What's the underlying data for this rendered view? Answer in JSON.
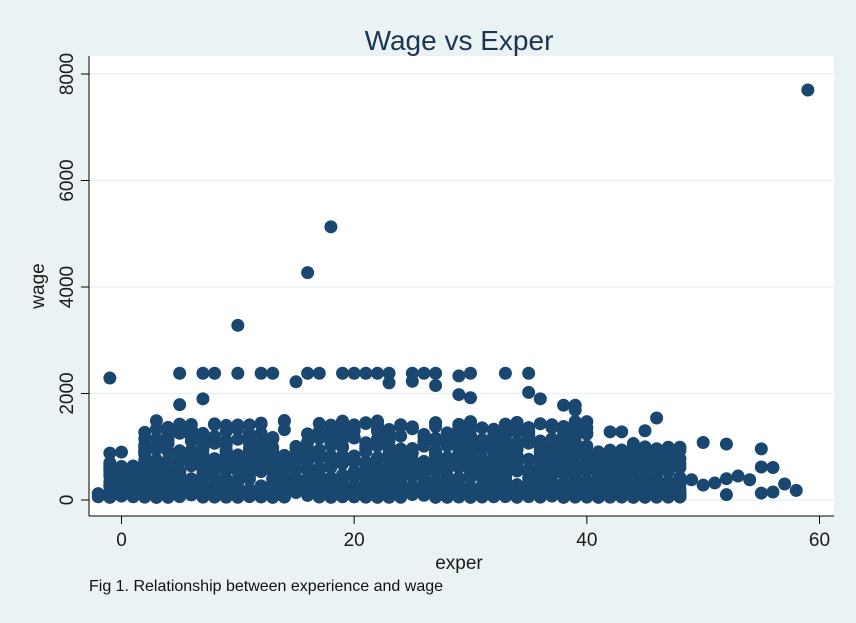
{
  "note": "Fig 1. Relationship between experience and wage",
  "colors": {
    "background": "#eaf2f3",
    "plot_bg": "#ffffff",
    "marker": "#1a476f",
    "grid": "#eaf2f3",
    "axis": "#000000"
  },
  "chart_data": {
    "type": "scatter",
    "title": "Wage vs Exper",
    "xlabel": "exper",
    "ylabel": "wage",
    "xlim": [
      -2,
      61
    ],
    "ylim": [
      -100,
      8300
    ],
    "xticks": [
      0,
      20,
      40,
      60
    ],
    "yticks": [
      0,
      2000,
      4000,
      6000,
      8000
    ],
    "grid": true,
    "legend": "none",
    "outliers": [
      {
        "x": 59,
        "y": 7700
      },
      {
        "x": 18,
        "y": 5130
      },
      {
        "x": 16,
        "y": 4270
      },
      {
        "x": 10,
        "y": 3280
      },
      {
        "x": -1,
        "y": 2290
      },
      {
        "x": 5,
        "y": 2380
      },
      {
        "x": 7,
        "y": 2380
      },
      {
        "x": 8,
        "y": 2380
      },
      {
        "x": 10,
        "y": 2380
      },
      {
        "x": 12,
        "y": 2380
      },
      {
        "x": 13,
        "y": 2380
      },
      {
        "x": 16,
        "y": 2380
      },
      {
        "x": 17,
        "y": 2380
      },
      {
        "x": 19,
        "y": 2380
      },
      {
        "x": 20,
        "y": 2380
      },
      {
        "x": 21,
        "y": 2380
      },
      {
        "x": 22,
        "y": 2380
      },
      {
        "x": 23,
        "y": 2380
      },
      {
        "x": 25,
        "y": 2380
      },
      {
        "x": 26,
        "y": 2380
      },
      {
        "x": 27,
        "y": 2380
      },
      {
        "x": 30,
        "y": 2380
      },
      {
        "x": 33,
        "y": 2380
      },
      {
        "x": 35,
        "y": 2380
      },
      {
        "x": 15,
        "y": 2220
      },
      {
        "x": 23,
        "y": 2200
      },
      {
        "x": 25,
        "y": 2230
      },
      {
        "x": 29,
        "y": 2330
      },
      {
        "x": 27,
        "y": 2150
      },
      {
        "x": 35,
        "y": 2020
      },
      {
        "x": 29,
        "y": 1980
      },
      {
        "x": 30,
        "y": 1920
      },
      {
        "x": 36,
        "y": 1900
      },
      {
        "x": 5,
        "y": 1790
      },
      {
        "x": 7,
        "y": 1900
      },
      {
        "x": 38,
        "y": 1780
      },
      {
        "x": 39,
        "y": 1780
      },
      {
        "x": 39,
        "y": 1690
      },
      {
        "x": 46,
        "y": 1540
      },
      {
        "x": 55,
        "y": 960
      },
      {
        "x": 50,
        "y": 1080
      },
      {
        "x": 52,
        "y": 1050
      },
      {
        "x": 55,
        "y": 620
      },
      {
        "x": 56,
        "y": 610
      },
      {
        "x": 57,
        "y": 300
      },
      {
        "x": 58,
        "y": 180
      },
      {
        "x": 56,
        "y": 150
      },
      {
        "x": 54,
        "y": 380
      },
      {
        "x": 53,
        "y": 450
      },
      {
        "x": 52,
        "y": 400
      },
      {
        "x": 51,
        "y": 320
      },
      {
        "x": 50,
        "y": 280
      },
      {
        "x": 49,
        "y": 380
      },
      {
        "x": 48,
        "y": 780
      },
      {
        "x": 52,
        "y": 100
      },
      {
        "x": 55,
        "y": 130
      },
      {
        "x": -2,
        "y": 120
      },
      {
        "x": -2,
        "y": 60
      },
      {
        "x": -1,
        "y": 700
      },
      {
        "x": -1,
        "y": 880
      },
      {
        "x": 0,
        "y": 900
      },
      {
        "x": 44,
        "y": 1060
      },
      {
        "x": 42,
        "y": 1280
      },
      {
        "x": 43,
        "y": 1280
      },
      {
        "x": 45,
        "y": 1300
      },
      {
        "x": 37,
        "y": 1390
      }
    ],
    "bulk": {
      "description_points": "dense cloud of observations for exper 0-48, wage mostly 50-1500",
      "x_range": [
        -1,
        48
      ],
      "y_range": [
        50,
        1500
      ],
      "count": 1300,
      "seed": 7
    }
  }
}
